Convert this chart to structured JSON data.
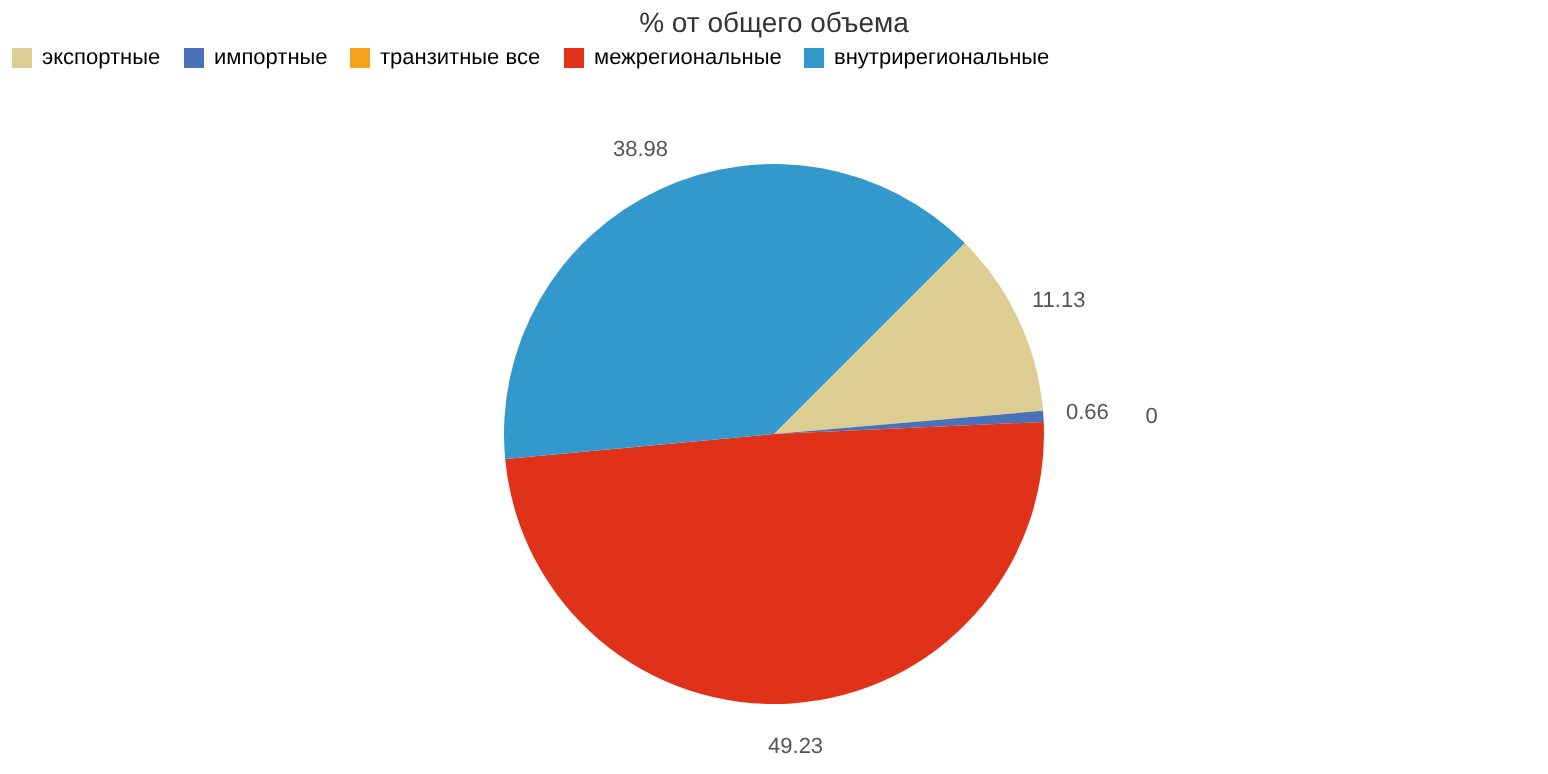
{
  "chart_data": {
    "type": "pie",
    "title": "% от общего объема",
    "categories": [
      "экспортные",
      "импортные",
      "транзитные все",
      "межрегиональные",
      "внутрирегиональные"
    ],
    "values": [
      11.13,
      0.66,
      0,
      49.23,
      38.98
    ],
    "colors": [
      "#dccd92",
      "#4a72b8",
      "#f7a21b",
      "#e03218",
      "#3399cc"
    ],
    "legend": "top",
    "value_labels": [
      "11.13",
      "0.66",
      "0",
      "49.23",
      "38.98"
    ]
  }
}
